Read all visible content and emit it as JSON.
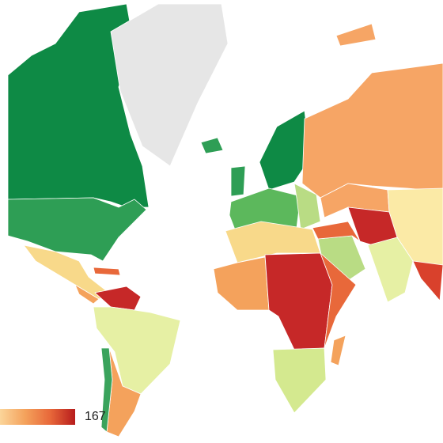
{
  "legend": {
    "max": 167,
    "colors": [
      "#fbd59a",
      "#f4a25c",
      "#e8683a",
      "#b71c1c"
    ]
  }
}
